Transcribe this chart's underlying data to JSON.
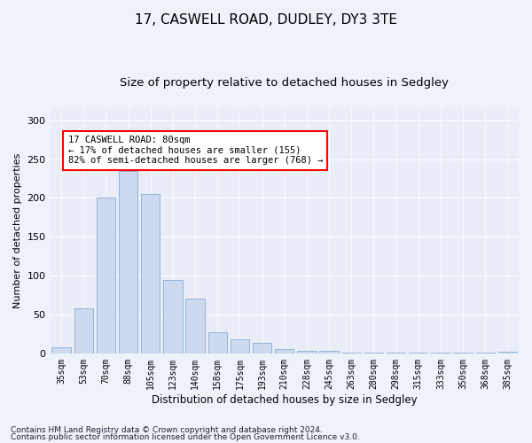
{
  "title_line1": "17, CASWELL ROAD, DUDLEY, DY3 3TE",
  "title_line2": "Size of property relative to detached houses in Sedgley",
  "xlabel": "Distribution of detached houses by size in Sedgley",
  "ylabel": "Number of detached properties",
  "bar_color": "#ccd9ee",
  "bar_edge_color": "#8aadd4",
  "categories": [
    "35sqm",
    "53sqm",
    "70sqm",
    "88sqm",
    "105sqm",
    "123sqm",
    "140sqm",
    "158sqm",
    "175sqm",
    "193sqm",
    "210sqm",
    "228sqm",
    "245sqm",
    "263sqm",
    "280sqm",
    "298sqm",
    "315sqm",
    "333sqm",
    "350sqm",
    "368sqm",
    "385sqm"
  ],
  "values": [
    8,
    58,
    200,
    235,
    205,
    94,
    70,
    27,
    18,
    14,
    5,
    3,
    3,
    1,
    1,
    1,
    1,
    1,
    1,
    1,
    2
  ],
  "ylim": [
    0,
    315
  ],
  "yticks": [
    0,
    50,
    100,
    150,
    200,
    250,
    300
  ],
  "annotation_text": "17 CASWELL ROAD: 80sqm\n← 17% of detached houses are smaller (155)\n82% of semi-detached houses are larger (768) →",
  "highlight_bar_index": 1,
  "background_color": "#eef2fb",
  "axes_bg_color": "#e8edf8",
  "footer1": "Contains HM Land Registry data © Crown copyright and database right 2024.",
  "footer2": "Contains public sector information licensed under the Open Government Licence v3.0.",
  "grid_color": "#ffffff",
  "title_fontsize": 11,
  "subtitle_fontsize": 9.5,
  "tick_fontsize": 7,
  "ylabel_fontsize": 8,
  "xlabel_fontsize": 8.5,
  "annotation_fontsize": 7.5,
  "footer_fontsize": 6.5
}
